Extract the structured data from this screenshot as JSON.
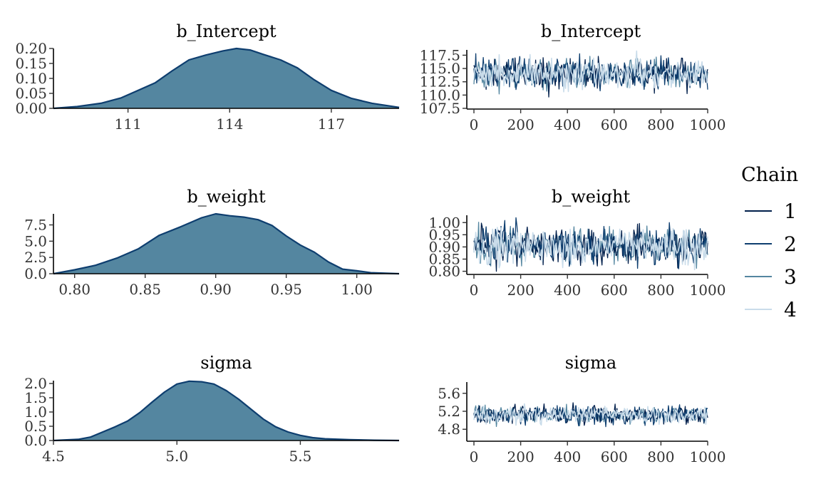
{
  "chart_data": [
    {
      "type": "area",
      "kind": "density",
      "title": "b_Intercept",
      "xlim": [
        108.8,
        119.0
      ],
      "ylim": [
        0,
        0.2
      ],
      "xticks": [
        111,
        114,
        117
      ],
      "xtick_labels": [
        "111",
        "114",
        "117"
      ],
      "yticks": [
        0,
        0.05,
        0.1,
        0.15,
        0.2
      ],
      "ytick_labels": [
        "0.00",
        "0.05",
        "0.10",
        "0.15",
        "0.20"
      ],
      "x": [
        108.8,
        109.5,
        110.2,
        110.8,
        111.2,
        111.8,
        112.3,
        112.8,
        113.3,
        113.8,
        114.2,
        114.6,
        115.0,
        115.5,
        116.0,
        116.5,
        117.0,
        117.6,
        118.2,
        119.0
      ],
      "y": [
        0.0,
        0.006,
        0.017,
        0.035,
        0.055,
        0.085,
        0.125,
        0.162,
        0.178,
        0.192,
        0.2,
        0.195,
        0.18,
        0.162,
        0.135,
        0.095,
        0.06,
        0.033,
        0.017,
        0.003
      ]
    },
    {
      "type": "line",
      "kind": "trace",
      "title": "b_Intercept",
      "xlim": [
        0,
        1000
      ],
      "ylim": [
        107.5,
        118.5
      ],
      "xticks": [
        0,
        200,
        400,
        600,
        800,
        1000
      ],
      "xtick_labels": [
        "0",
        "200",
        "400",
        "600",
        "800",
        "1000"
      ],
      "yticks": [
        107.5,
        110,
        112.5,
        115,
        117.5
      ],
      "ytick_labels": [
        "107.5",
        "110.0",
        "112.5",
        "115.0",
        "117.5"
      ],
      "center": 114.0,
      "spread": 3.2,
      "clip": [
        108.2,
        118.3
      ]
    },
    {
      "type": "area",
      "kind": "density",
      "title": "b_weight",
      "xlim": [
        0.785,
        1.03
      ],
      "ylim": [
        0,
        9.2
      ],
      "xticks": [
        0.8,
        0.85,
        0.9,
        0.95,
        1.0
      ],
      "xtick_labels": [
        "0.80",
        "0.85",
        "0.90",
        "0.95",
        "1.00"
      ],
      "yticks": [
        0,
        2.5,
        5,
        7.5
      ],
      "ytick_labels": [
        "0.0",
        "2.5",
        "5.0",
        "7.5"
      ],
      "x": [
        0.785,
        0.8,
        0.815,
        0.83,
        0.845,
        0.86,
        0.875,
        0.89,
        0.9,
        0.91,
        0.92,
        0.93,
        0.94,
        0.95,
        0.96,
        0.97,
        0.98,
        0.99,
        1.0,
        1.01,
        1.03
      ],
      "y": [
        0.0,
        0.6,
        1.3,
        2.4,
        3.8,
        5.9,
        7.2,
        8.6,
        9.2,
        8.9,
        8.7,
        8.3,
        7.4,
        5.8,
        4.4,
        3.3,
        1.8,
        0.7,
        0.45,
        0.15,
        0.0
      ]
    },
    {
      "type": "line",
      "kind": "trace",
      "title": "b_weight",
      "xlim": [
        0,
        1000
      ],
      "ylim": [
        0.79,
        1.03
      ],
      "xticks": [
        0,
        200,
        400,
        600,
        800,
        1000
      ],
      "xtick_labels": [
        "0",
        "200",
        "400",
        "600",
        "800",
        "1000"
      ],
      "yticks": [
        0.8,
        0.85,
        0.9,
        0.95,
        1.0
      ],
      "ytick_labels": [
        "0.80",
        "0.85",
        "0.90",
        "0.95",
        "1.00"
      ],
      "center": 0.905,
      "spread": 0.085,
      "clip": [
        0.8,
        1.02
      ]
    },
    {
      "type": "area",
      "kind": "density",
      "title": "sigma",
      "xlim": [
        4.5,
        5.9
      ],
      "ylim": [
        0,
        2.1
      ],
      "xticks": [
        4.5,
        5.0,
        5.5
      ],
      "xtick_labels": [
        "4.5",
        "5.0",
        "5.5"
      ],
      "yticks": [
        0,
        0.5,
        1,
        1.5,
        2
      ],
      "ytick_labels": [
        "0.0",
        "0.5",
        "1.0",
        "1.5",
        "2.0"
      ],
      "x": [
        4.5,
        4.6,
        4.65,
        4.7,
        4.75,
        4.8,
        4.85,
        4.9,
        4.95,
        5.0,
        5.05,
        5.1,
        5.15,
        5.2,
        5.25,
        5.3,
        5.35,
        5.4,
        5.45,
        5.5,
        5.55,
        5.6,
        5.7,
        5.8,
        5.9
      ],
      "y": [
        0.0,
        0.04,
        0.12,
        0.3,
        0.48,
        0.68,
        0.98,
        1.35,
        1.7,
        1.98,
        2.08,
        2.06,
        1.98,
        1.75,
        1.45,
        1.1,
        0.75,
        0.48,
        0.3,
        0.18,
        0.1,
        0.06,
        0.03,
        0.01,
        0.0
      ]
    },
    {
      "type": "line",
      "kind": "trace",
      "title": "sigma",
      "xlim": [
        0,
        1000
      ],
      "ylim": [
        4.55,
        5.85
      ],
      "xticks": [
        0,
        200,
        400,
        600,
        800,
        1000
      ],
      "xtick_labels": [
        "0",
        "200",
        "400",
        "600",
        "800",
        "1000"
      ],
      "yticks": [
        4.8,
        5.2,
        5.6
      ],
      "ytick_labels": [
        "4.8",
        "5.2",
        "5.6"
      ],
      "center": 5.12,
      "spread": 0.22,
      "clip": [
        4.62,
        5.8
      ]
    }
  ],
  "legend": {
    "title": "Chain",
    "entries": [
      "1",
      "2",
      "3",
      "4"
    ],
    "colors": [
      "#011f4b",
      "#0e3e6f",
      "#5486a0",
      "#c9dcea"
    ]
  },
  "colors": {
    "density_fill": "#5486a0",
    "density_line": "#0e3e6f",
    "axis": "#000000"
  }
}
